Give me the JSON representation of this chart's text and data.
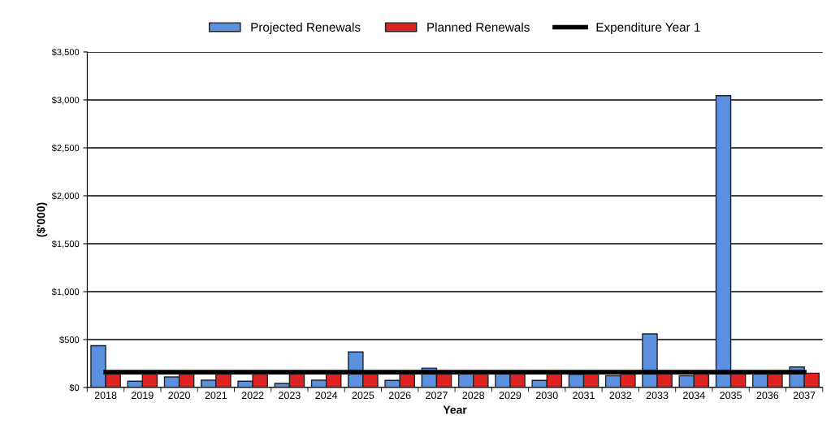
{
  "chart_data": {
    "type": "bar",
    "xlabel": "Year",
    "ylabel": "($'000)",
    "categories": [
      "2018",
      "2019",
      "2020",
      "2021",
      "2022",
      "2023",
      "2024",
      "2025",
      "2026",
      "2027",
      "2028",
      "2029",
      "2030",
      "2031",
      "2032",
      "2033",
      "2034",
      "2035",
      "2036",
      "2037"
    ],
    "series": [
      {
        "name": "Projected Renewals",
        "color": "#5b8fe0",
        "values": [
          437,
          66,
          111,
          77,
          66,
          43,
          77,
          371,
          74,
          203,
          150,
          150,
          74,
          137,
          123,
          560,
          123,
          3044,
          150,
          214
        ]
      },
      {
        "name": "Planned Renewals",
        "color": "#dd2222",
        "values": [
          150,
          150,
          150,
          150,
          150,
          150,
          150,
          150,
          150,
          150,
          150,
          150,
          150,
          150,
          150,
          150,
          150,
          150,
          150,
          150
        ]
      },
      {
        "name": "Expenditure Year 1",
        "type": "line",
        "color": "#000000",
        "values": [
          160,
          160,
          160,
          160,
          160,
          160,
          160,
          160,
          160,
          160,
          160,
          160,
          160,
          160,
          160,
          160,
          160,
          160,
          160,
          160
        ]
      }
    ],
    "ylim": [
      0,
      3500
    ],
    "yticks": [
      {
        "value": 0,
        "label": "$0"
      },
      {
        "value": 500,
        "label": "$500"
      },
      {
        "value": 1000,
        "label": "$1,000"
      },
      {
        "value": 1500,
        "label": "$1,500"
      },
      {
        "value": 2000,
        "label": "$2,000"
      },
      {
        "value": 2500,
        "label": "$2,500"
      },
      {
        "value": 3000,
        "label": "$3,000"
      },
      {
        "value": 3500,
        "label": "$3,500"
      }
    ],
    "grid": "y",
    "legend": "top"
  }
}
